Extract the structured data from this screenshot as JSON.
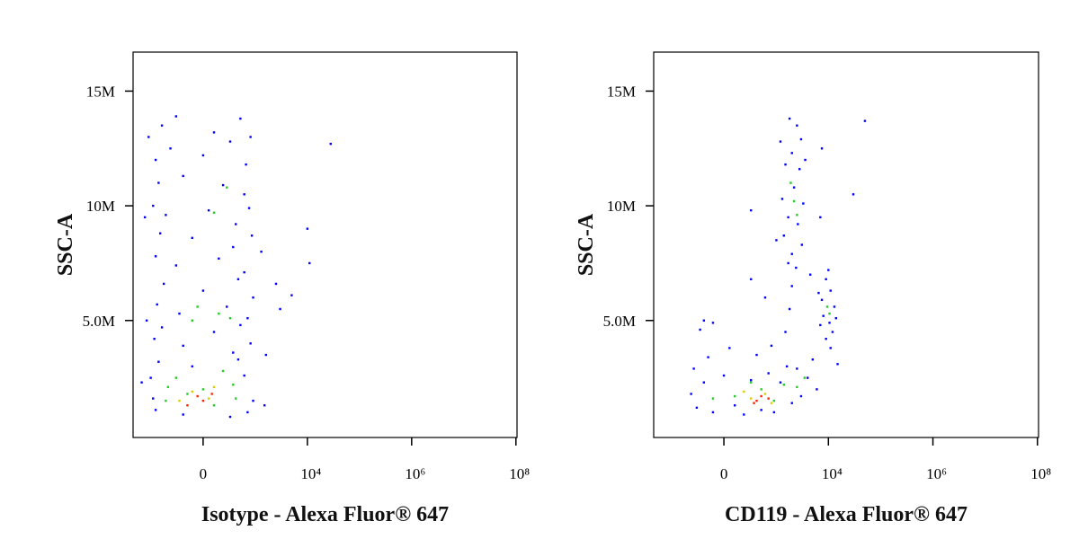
{
  "chart_data": [
    {
      "type": "scatter",
      "xscale": "biexponential",
      "xlabel": "Isotype - Alexa Fluor® 647",
      "ylabel": "SSC-A",
      "xlim": [
        -2200,
        105000000.0
      ],
      "ylim": [
        -100000.0,
        16700000.0
      ],
      "xticks": [
        0,
        {
          "value": 10000,
          "label": "10⁴"
        },
        {
          "value": 1000000,
          "label": "10⁶"
        },
        {
          "value": 100000000,
          "label": "10⁸"
        }
      ],
      "yticks": [
        {
          "value": 5000000.0,
          "label": "5.0M"
        },
        {
          "value": 10000000.0,
          "label": "10M"
        },
        {
          "value": 15000000.0,
          "label": "15M"
        }
      ],
      "series": [
        {
          "color": "#0000ff",
          "x": [
            -600,
            -300,
            100,
            500,
            800,
            -800,
            -400,
            0,
            300,
            650,
            -700,
            -200,
            200,
            600,
            -900,
            -500,
            50,
            400,
            750,
            -650,
            -100,
            350,
            850,
            -800,
            -300,
            150,
            600,
            -550,
            0,
            450,
            900,
            -750,
            -250,
            250,
            700,
            -600,
            100,
            500,
            -850,
            -200,
            350,
            800,
            -700,
            -100,
            450,
            -1000,
            600,
            -900,
            900,
            -800,
            700,
            -200,
            300,
            1500,
            -1500,
            -1200,
            -1300,
            1300,
            1600,
            -1100,
            3000,
            5000,
            10000,
            11000,
            28000,
            2500
          ],
          "values": [
            13500000.0,
            13900000.0,
            13200000.0,
            13800000.0,
            13000000.0,
            12000000.0,
            12500000.0,
            12200000.0,
            12800000.0,
            11800000.0,
            11000000.0,
            11300000.0,
            10900000.0,
            10500000.0,
            10000000.0,
            9600000.0,
            9800000.0,
            9200000.0,
            9900000.0,
            8800000.0,
            8600000.0,
            8200000.0,
            8700000.0,
            7800000.0,
            7400000.0,
            7700000.0,
            7100000.0,
            6600000.0,
            6300000.0,
            6800000.0,
            6000000.0,
            5700000.0,
            5300000.0,
            5600000.0,
            5100000.0,
            4700000.0,
            4500000.0,
            4800000.0,
            4200000.0,
            3900000.0,
            3600000.0,
            4000000.0,
            3200000.0,
            3000000.0,
            3300000.0,
            2500000.0,
            2600000.0,
            1600000.0,
            1500000.0,
            1100000.0,
            1000000.0,
            900000.0,
            800000.0,
            1300000.0,
            2300000.0,
            5000000.0,
            9500000.0,
            8000000.0,
            3500000.0,
            13000000.0,
            5500000.0,
            6100000.0,
            9000000.0,
            7500000.0,
            12700000.0,
            6600000.0
          ]
        },
        {
          "color": "#22cc22",
          "x": [
            -300,
            0,
            200,
            -150,
            350,
            -450,
            100,
            -500,
            400,
            150,
            -100,
            100,
            250,
            -50,
            300
          ],
          "values": [
            2500000.0,
            2000000.0,
            2800000.0,
            1800000.0,
            2200000.0,
            2100000.0,
            1300000.0,
            1500000.0,
            1600000.0,
            5300000.0,
            5000000.0,
            9700000.0,
            10800000.0,
            5600000.0,
            5100000.0
          ]
        },
        {
          "color": "#ddcc00",
          "x": [
            -100,
            100,
            -250,
            50
          ],
          "values": [
            1900000.0,
            2100000.0,
            1500000.0,
            1600000.0
          ]
        },
        {
          "color": "#ff2200",
          "x": [
            -50,
            0,
            80,
            -150
          ],
          "values": [
            1700000.0,
            1500000.0,
            1800000.0,
            1300000.0
          ]
        }
      ]
    },
    {
      "type": "scatter",
      "xscale": "biexponential",
      "xlabel": "CD119 - Alexa Fluor® 647",
      "ylabel": "SSC-A",
      "xlim": [
        -2200,
        105000000.0
      ],
      "ylim": [
        -100000.0,
        16700000.0
      ],
      "xticks": [
        0,
        {
          "value": 10000,
          "label": "10⁴"
        },
        {
          "value": 1000000,
          "label": "10⁶"
        },
        {
          "value": 100000000,
          "label": "10⁸"
        }
      ],
      "yticks": [
        {
          "value": 5000000.0,
          "label": "5.0M"
        },
        {
          "value": 10000000.0,
          "label": "10M"
        },
        {
          "value": 15000000.0,
          "label": "15M"
        }
      ],
      "series": [
        {
          "color": "#0000ff",
          "x": [
            -400,
            -300,
            -200,
            -100,
            0,
            100,
            200,
            300,
            500,
            700,
            900,
            1200,
            1600,
            2000,
            2500,
            3000,
            4000,
            5000,
            6000,
            -350,
            -150,
            50,
            400,
            800,
            -250,
            -100,
            1500,
            1800,
            2000,
            1700,
            600,
            300,
            1000,
            1800,
            2500,
            3000,
            2000,
            1500,
            2800,
            2200,
            1300,
            3300,
            1700,
            2600,
            1400,
            3100,
            2000,
            2400,
            1200,
            3600,
            9000,
            11000,
            7500,
            13000,
            8000,
            10500,
            12000,
            9000,
            7000,
            14000,
            6500,
            10000,
            15000,
            11000,
            7500,
            7000,
            30000,
            50000,
            300,
            -200,
            4500
          ],
          "values": [
            1800000.0,
            1200000.0,
            2300000.0,
            1000000.0,
            2600000.0,
            1300000.0,
            900000.0,
            2400000.0,
            1100000.0,
            2700000.0,
            1000000.0,
            2300000.0,
            3000000.0,
            1400000.0,
            2900000.0,
            1700000.0,
            2500000.0,
            3300000.0,
            2000000.0,
            2900000.0,
            3400000.0,
            3800000.0,
            3500000.0,
            3900000.0,
            4600000.0,
            4900000.0,
            4500000.0,
            5500000.0,
            6500000.0,
            7500000.0,
            6000000.0,
            6800000.0,
            8500000.0,
            13800000.0,
            13500000.0,
            12900000.0,
            12300000.0,
            11800000.0,
            11600000.0,
            10800000.0,
            10300000.0,
            10100000.0,
            9500000.0,
            9200000.0,
            8700000.0,
            8300000.0,
            7900000.0,
            7300000.0,
            12800000.0,
            12000000.0,
            6800000.0,
            6300000.0,
            5900000.0,
            5600000.0,
            5200000.0,
            4900000.0,
            4500000.0,
            4200000.0,
            4800000.0,
            5100000.0,
            6200000.0,
            7200000.0,
            3100000.0,
            3800000.0,
            12500000.0,
            9500000.0,
            10500000.0,
            13700000.0,
            9800000.0,
            5000000.0,
            7000000.0
          ]
        },
        {
          "color": "#22cc22",
          "x": [
            100,
            500,
            900,
            1400,
            2500,
            -100,
            300,
            2200,
            2500,
            1900,
            9500,
            10500,
            3500
          ],
          "values": [
            1700000.0,
            2000000.0,
            1500000.0,
            2200000.0,
            2100000.0,
            1600000.0,
            2300000.0,
            10200000.0,
            9600000.0,
            11000000.0,
            5600000.0,
            5300000.0,
            2500000.0
          ]
        },
        {
          "color": "#ddcc00",
          "x": [
            300,
            600,
            800,
            200
          ],
          "values": [
            1600000.0,
            1800000.0,
            1400000.0,
            1900000.0
          ]
        },
        {
          "color": "#ff2200",
          "x": [
            400,
            500,
            700,
            350
          ],
          "values": [
            1500000.0,
            1700000.0,
            1600000.0,
            1400000.0
          ]
        }
      ]
    }
  ]
}
